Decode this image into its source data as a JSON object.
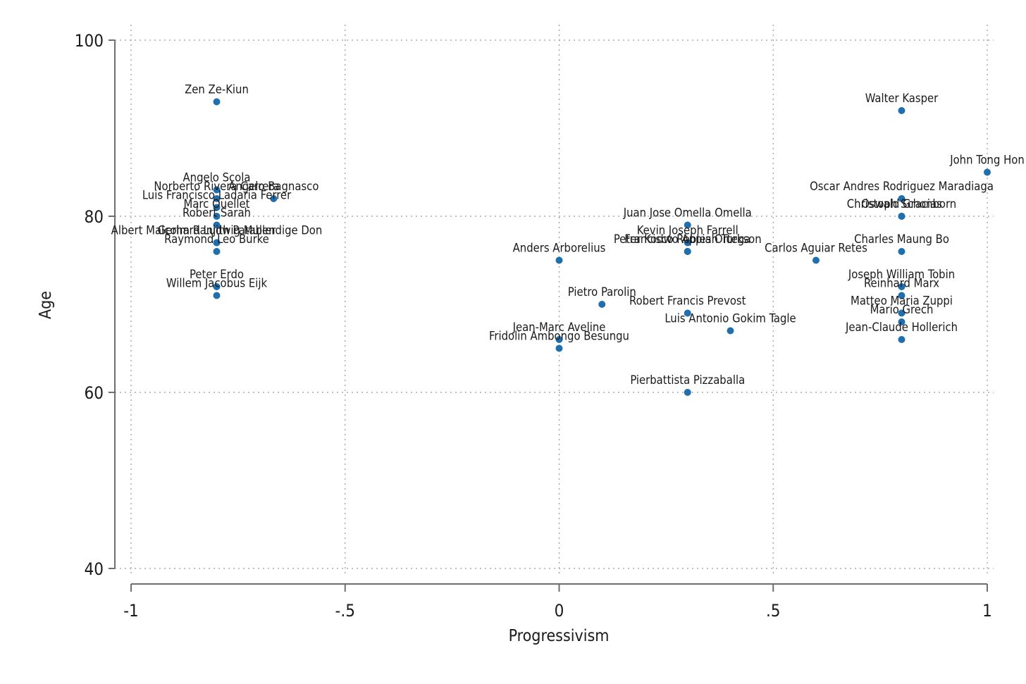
{
  "chart_data": {
    "type": "scatter",
    "xlabel": "Progressivism",
    "ylabel": "Age",
    "xlim": [
      -1,
      1
    ],
    "ylim": [
      40,
      100
    ],
    "xticks": [
      -1,
      -0.5,
      0,
      0.5,
      1
    ],
    "xtick_labels": [
      "-1",
      "-.5",
      "0",
      ".5",
      "1"
    ],
    "yticks": [
      40,
      60,
      80,
      100
    ],
    "ytick_labels": [
      "40",
      "60",
      "80",
      "100"
    ],
    "grid": true,
    "marker_color": "#1f6fae",
    "points": [
      {
        "label": "Zen Ze-Kiun",
        "x": -0.8,
        "y": 93
      },
      {
        "label": "Angelo Scola",
        "x": -0.8,
        "y": 83
      },
      {
        "label": "Norberto Rivera Carrera",
        "x": -0.8,
        "y": 82
      },
      {
        "label": "Angelo Bagnasco",
        "x": -0.667,
        "y": 82
      },
      {
        "label": "Luis Francisco Ladaria Ferrer",
        "x": -0.8,
        "y": 81
      },
      {
        "label": "Marc Ouellet",
        "x": -0.8,
        "y": 80
      },
      {
        "label": "Robert Sarah",
        "x": -0.8,
        "y": 79
      },
      {
        "label": "Albert Malcolm Ranjith Patabendige Don",
        "x": -0.8,
        "y": 77
      },
      {
        "label": "Gerhard Ludwig Muller",
        "x": -0.8,
        "y": 77
      },
      {
        "label": "Raymond Leo Burke",
        "x": -0.8,
        "y": 76
      },
      {
        "label": "Peter Erdo",
        "x": -0.8,
        "y": 72
      },
      {
        "label": "Willem Jacobus Eijk",
        "x": -0.8,
        "y": 71
      },
      {
        "label": "Anders Arborelius",
        "x": 0,
        "y": 75
      },
      {
        "label": "Jean-Marc Aveline",
        "x": 0,
        "y": 66
      },
      {
        "label": "Fridolin Ambongo Besungu",
        "x": 0,
        "y": 65
      },
      {
        "label": "Pietro Parolin",
        "x": 0.1,
        "y": 70
      },
      {
        "label": "Juan Jose Omella Omella",
        "x": 0.3,
        "y": 79
      },
      {
        "label": "Kevin Joseph Farrell",
        "x": 0.3,
        "y": 77
      },
      {
        "label": "Peter Kodwo Appiah Turkson",
        "x": 0.3,
        "y": 76
      },
      {
        "label": "Francisco Robles Ortega",
        "x": 0.3,
        "y": 76
      },
      {
        "label": "Robert Francis Prevost",
        "x": 0.3,
        "y": 69
      },
      {
        "label": "Pierbattista Pizzaballa",
        "x": 0.3,
        "y": 60
      },
      {
        "label": "Luis Antonio Gokim Tagle",
        "x": 0.4,
        "y": 67
      },
      {
        "label": "Carlos Aguiar Retes",
        "x": 0.6,
        "y": 75
      },
      {
        "label": "Walter Kasper",
        "x": 0.8,
        "y": 92
      },
      {
        "label": "Oscar Andres Rodriguez Maradiaga",
        "x": 0.8,
        "y": 82
      },
      {
        "label": "Christoph Schonborn",
        "x": 0.8,
        "y": 80
      },
      {
        "label": "Oswald Gracias",
        "x": 0.8,
        "y": 80
      },
      {
        "label": "Charles Maung Bo",
        "x": 0.8,
        "y": 76
      },
      {
        "label": "Joseph William Tobin",
        "x": 0.8,
        "y": 72
      },
      {
        "label": "Reinhard Marx",
        "x": 0.8,
        "y": 71
      },
      {
        "label": "Matteo Maria Zuppi",
        "x": 0.8,
        "y": 69
      },
      {
        "label": "Mario Grech",
        "x": 0.8,
        "y": 68
      },
      {
        "label": "Jean-Claude Hollerich",
        "x": 0.8,
        "y": 66
      },
      {
        "label": "John Tong Hon",
        "x": 1,
        "y": 85
      }
    ]
  }
}
